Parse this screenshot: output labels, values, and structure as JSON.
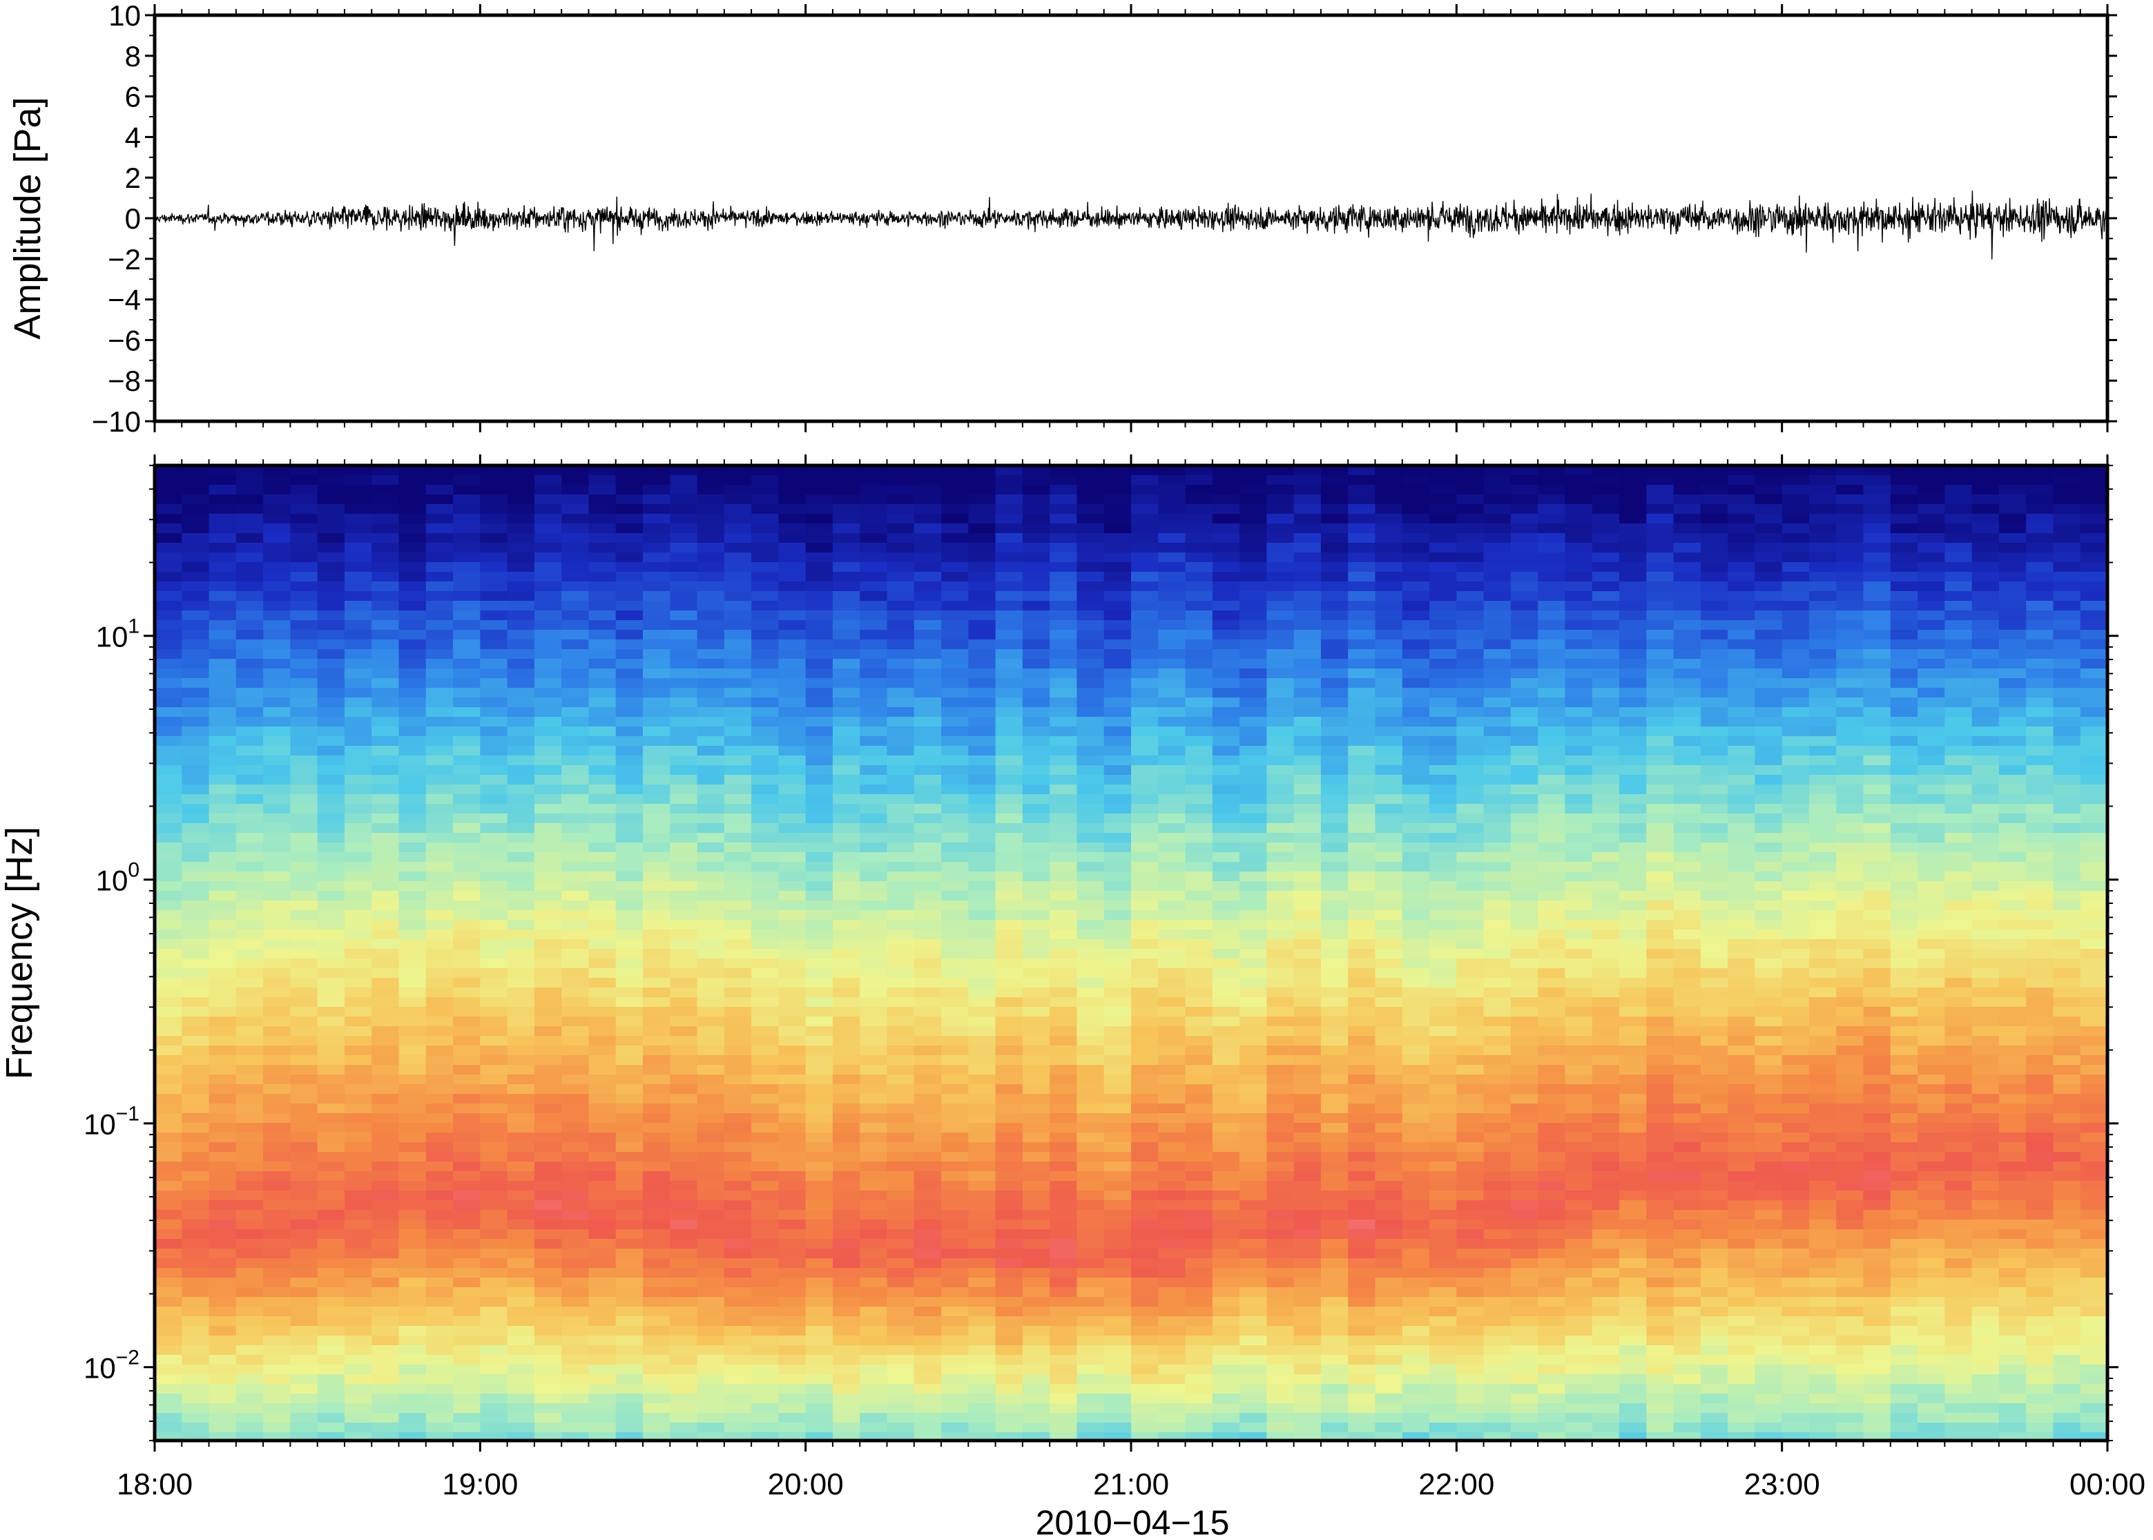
{
  "chart_data": [
    {
      "type": "line",
      "panel": "waveform",
      "title": "",
      "xlabel": "",
      "ylabel": "Amplitude [Pa]",
      "ylim": [
        -10,
        10
      ],
      "y_ticks": [
        -10,
        -8,
        -6,
        -4,
        -2,
        0,
        2,
        4,
        6,
        8,
        10
      ],
      "y_tick_labels": [
        "−10",
        "−8",
        "−6",
        "−4",
        "−2",
        "0",
        "2",
        "4",
        "6",
        "8",
        "10"
      ],
      "x_range": [
        "2010-04-15 18:00",
        "2010-04-16 00:00"
      ],
      "grid": false,
      "color": "#000000",
      "envelope": {
        "times": [
          "18:00",
          "18:20",
          "18:40",
          "19:00",
          "19:20",
          "19:40",
          "20:00",
          "20:20",
          "20:40",
          "21:00",
          "21:20",
          "21:40",
          "22:00",
          "22:20",
          "22:40",
          "23:00",
          "23:20",
          "23:40",
          "00:00"
        ],
        "amplitude_pa": [
          0.4,
          0.6,
          1.2,
          1.1,
          1.2,
          0.9,
          0.6,
          0.7,
          0.8,
          0.9,
          1.0,
          1.3,
          1.4,
          1.3,
          1.3,
          1.6,
          1.5,
          1.5,
          1.6
        ]
      }
    },
    {
      "type": "heatmap",
      "panel": "spectrogram",
      "title": "",
      "xlabel": "2010−04−15",
      "ylabel": "Frequency [Hz]",
      "y_scale": "log",
      "ylim": [
        0.005,
        50
      ],
      "y_ticks": [
        0.01,
        0.1,
        1,
        10
      ],
      "y_tick_labels": [
        {
          "base": "10",
          "exp": "−2"
        },
        {
          "base": "10",
          "exp": "−1"
        },
        {
          "base": "10",
          "exp": "0"
        },
        {
          "base": "10",
          "exp": "1"
        }
      ],
      "x_ticks": [
        "18:00",
        "19:00",
        "20:00",
        "21:00",
        "22:00",
        "23:00",
        "00:00"
      ],
      "colormap": [
        "#0b0577",
        "#1a2ec4",
        "#2e7ee8",
        "#4cc9ea",
        "#a9ecc0",
        "#eef58e",
        "#f7c55a",
        "#f58b45",
        "#ef5a4e",
        "#f8808a"
      ],
      "grid": false,
      "time_columns": 72,
      "peak_level_frequency_hz": {
        "times": [
          "18:00",
          "18:30",
          "19:00",
          "19:30",
          "20:00",
          "20:30",
          "21:00",
          "21:30",
          "22:00",
          "22:30",
          "23:00",
          "23:30",
          "00:00"
        ],
        "values": [
          0.03,
          0.04,
          0.05,
          0.04,
          0.03,
          0.03,
          0.03,
          0.04,
          0.035,
          0.06,
          0.06,
          0.07,
          0.07
        ]
      }
    }
  ]
}
